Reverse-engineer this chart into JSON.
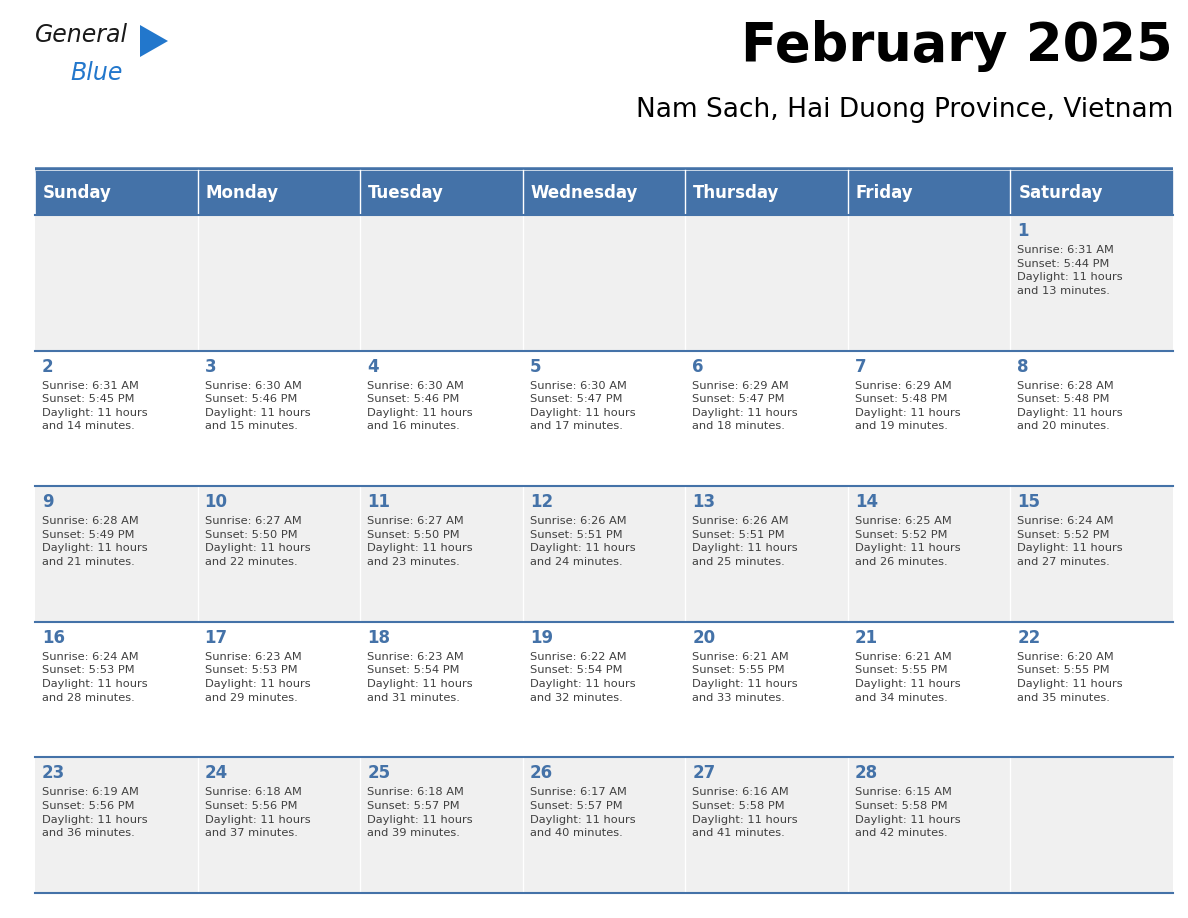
{
  "title": "February 2025",
  "subtitle": "Nam Sach, Hai Duong Province, Vietnam",
  "header_bg_color": "#4472A8",
  "header_text_color": "#FFFFFF",
  "cell_bg_color_even": "#F0F0F0",
  "cell_bg_color_odd": "#FFFFFF",
  "day_number_color": "#4472A8",
  "text_color": "#404040",
  "border_color": "#4472A8",
  "separator_color": "#4472A8",
  "days_of_week": [
    "Sunday",
    "Monday",
    "Tuesday",
    "Wednesday",
    "Thursday",
    "Friday",
    "Saturday"
  ],
  "logo_color1": "#1a1a1a",
  "logo_color2": "#2277CC",
  "logo_triangle_color": "#2277CC",
  "calendar_data": [
    [
      {
        "day": null,
        "info": ""
      },
      {
        "day": null,
        "info": ""
      },
      {
        "day": null,
        "info": ""
      },
      {
        "day": null,
        "info": ""
      },
      {
        "day": null,
        "info": ""
      },
      {
        "day": null,
        "info": ""
      },
      {
        "day": 1,
        "info": "Sunrise: 6:31 AM\nSunset: 5:44 PM\nDaylight: 11 hours\nand 13 minutes."
      }
    ],
    [
      {
        "day": 2,
        "info": "Sunrise: 6:31 AM\nSunset: 5:45 PM\nDaylight: 11 hours\nand 14 minutes."
      },
      {
        "day": 3,
        "info": "Sunrise: 6:30 AM\nSunset: 5:46 PM\nDaylight: 11 hours\nand 15 minutes."
      },
      {
        "day": 4,
        "info": "Sunrise: 6:30 AM\nSunset: 5:46 PM\nDaylight: 11 hours\nand 16 minutes."
      },
      {
        "day": 5,
        "info": "Sunrise: 6:30 AM\nSunset: 5:47 PM\nDaylight: 11 hours\nand 17 minutes."
      },
      {
        "day": 6,
        "info": "Sunrise: 6:29 AM\nSunset: 5:47 PM\nDaylight: 11 hours\nand 18 minutes."
      },
      {
        "day": 7,
        "info": "Sunrise: 6:29 AM\nSunset: 5:48 PM\nDaylight: 11 hours\nand 19 minutes."
      },
      {
        "day": 8,
        "info": "Sunrise: 6:28 AM\nSunset: 5:48 PM\nDaylight: 11 hours\nand 20 minutes."
      }
    ],
    [
      {
        "day": 9,
        "info": "Sunrise: 6:28 AM\nSunset: 5:49 PM\nDaylight: 11 hours\nand 21 minutes."
      },
      {
        "day": 10,
        "info": "Sunrise: 6:27 AM\nSunset: 5:50 PM\nDaylight: 11 hours\nand 22 minutes."
      },
      {
        "day": 11,
        "info": "Sunrise: 6:27 AM\nSunset: 5:50 PM\nDaylight: 11 hours\nand 23 minutes."
      },
      {
        "day": 12,
        "info": "Sunrise: 6:26 AM\nSunset: 5:51 PM\nDaylight: 11 hours\nand 24 minutes."
      },
      {
        "day": 13,
        "info": "Sunrise: 6:26 AM\nSunset: 5:51 PM\nDaylight: 11 hours\nand 25 minutes."
      },
      {
        "day": 14,
        "info": "Sunrise: 6:25 AM\nSunset: 5:52 PM\nDaylight: 11 hours\nand 26 minutes."
      },
      {
        "day": 15,
        "info": "Sunrise: 6:24 AM\nSunset: 5:52 PM\nDaylight: 11 hours\nand 27 minutes."
      }
    ],
    [
      {
        "day": 16,
        "info": "Sunrise: 6:24 AM\nSunset: 5:53 PM\nDaylight: 11 hours\nand 28 minutes."
      },
      {
        "day": 17,
        "info": "Sunrise: 6:23 AM\nSunset: 5:53 PM\nDaylight: 11 hours\nand 29 minutes."
      },
      {
        "day": 18,
        "info": "Sunrise: 6:23 AM\nSunset: 5:54 PM\nDaylight: 11 hours\nand 31 minutes."
      },
      {
        "day": 19,
        "info": "Sunrise: 6:22 AM\nSunset: 5:54 PM\nDaylight: 11 hours\nand 32 minutes."
      },
      {
        "day": 20,
        "info": "Sunrise: 6:21 AM\nSunset: 5:55 PM\nDaylight: 11 hours\nand 33 minutes."
      },
      {
        "day": 21,
        "info": "Sunrise: 6:21 AM\nSunset: 5:55 PM\nDaylight: 11 hours\nand 34 minutes."
      },
      {
        "day": 22,
        "info": "Sunrise: 6:20 AM\nSunset: 5:55 PM\nDaylight: 11 hours\nand 35 minutes."
      }
    ],
    [
      {
        "day": 23,
        "info": "Sunrise: 6:19 AM\nSunset: 5:56 PM\nDaylight: 11 hours\nand 36 minutes."
      },
      {
        "day": 24,
        "info": "Sunrise: 6:18 AM\nSunset: 5:56 PM\nDaylight: 11 hours\nand 37 minutes."
      },
      {
        "day": 25,
        "info": "Sunrise: 6:18 AM\nSunset: 5:57 PM\nDaylight: 11 hours\nand 39 minutes."
      },
      {
        "day": 26,
        "info": "Sunrise: 6:17 AM\nSunset: 5:57 PM\nDaylight: 11 hours\nand 40 minutes."
      },
      {
        "day": 27,
        "info": "Sunrise: 6:16 AM\nSunset: 5:58 PM\nDaylight: 11 hours\nand 41 minutes."
      },
      {
        "day": 28,
        "info": "Sunrise: 6:15 AM\nSunset: 5:58 PM\nDaylight: 11 hours\nand 42 minutes."
      },
      {
        "day": null,
        "info": ""
      }
    ]
  ]
}
